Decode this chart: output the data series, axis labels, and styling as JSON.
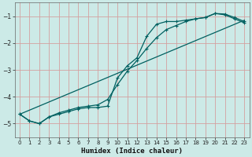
{
  "xlabel": "Humidex (Indice chaleur)",
  "bg_color": "#cceae7",
  "grid_color": "#d4a0a0",
  "line_color": "#006060",
  "xlim": [
    -0.5,
    23.5
  ],
  "ylim": [
    -5.5,
    -0.5
  ],
  "yticks": [
    -5,
    -4,
    -3,
    -2,
    -1
  ],
  "xticks": [
    0,
    1,
    2,
    3,
    4,
    5,
    6,
    7,
    8,
    9,
    10,
    11,
    12,
    13,
    14,
    15,
    16,
    17,
    18,
    19,
    20,
    21,
    22,
    23
  ],
  "trend_x": [
    0,
    23
  ],
  "trend_y": [
    -4.65,
    -1.15
  ],
  "curve1_x": [
    0,
    1,
    2,
    3,
    4,
    5,
    6,
    7,
    8,
    9,
    10,
    11,
    12,
    13,
    14,
    15,
    16,
    17,
    18,
    19,
    20,
    21,
    22,
    23
  ],
  "curve1_y": [
    -4.65,
    -4.9,
    -5.0,
    -4.75,
    -4.65,
    -4.55,
    -4.45,
    -4.4,
    -4.4,
    -4.35,
    -3.3,
    -2.85,
    -2.55,
    -1.75,
    -1.3,
    -1.2,
    -1.2,
    -1.15,
    -1.1,
    -1.05,
    -0.9,
    -0.92,
    -1.05,
    -1.2
  ],
  "curve2_x": [
    0,
    1,
    2,
    3,
    4,
    5,
    6,
    7,
    8,
    9,
    10,
    11,
    12,
    13,
    14,
    15,
    16,
    17,
    18,
    19,
    20,
    21,
    22,
    23
  ],
  "curve2_y": [
    -4.65,
    -4.9,
    -5.0,
    -4.75,
    -4.6,
    -4.5,
    -4.4,
    -4.35,
    -4.3,
    -4.1,
    -3.55,
    -3.05,
    -2.65,
    -2.2,
    -1.8,
    -1.5,
    -1.35,
    -1.2,
    -1.1,
    -1.05,
    -0.9,
    -0.95,
    -1.1,
    -1.25
  ]
}
